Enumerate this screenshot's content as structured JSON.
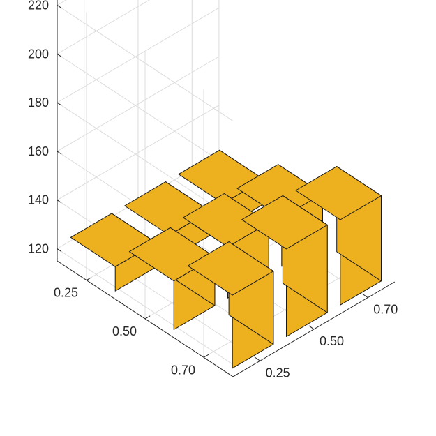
{
  "chart_data": {
    "type": "bar3",
    "title": "",
    "xlabel": "",
    "ylabel": "",
    "zlabel": "",
    "x_categories": [
      "0.25",
      "0.50",
      "0.70"
    ],
    "y_categories": [
      "0.25",
      "0.50",
      "0.70"
    ],
    "zlim": [
      115,
      225
    ],
    "z_ticks": [
      120,
      140,
      160,
      180,
      200,
      220
    ],
    "grid": true,
    "bar_color": "#EDB120",
    "bars": [
      {
        "x": "0.25",
        "y": "0.25",
        "value": 125
      },
      {
        "x": "0.25",
        "y": "0.50",
        "value": 125
      },
      {
        "x": "0.25",
        "y": "0.70",
        "value": 125
      },
      {
        "x": "0.50",
        "y": "0.25",
        "value": 135
      },
      {
        "x": "0.50",
        "y": "0.50",
        "value": 136
      },
      {
        "x": "0.50",
        "y": "0.70",
        "value": 135
      },
      {
        "x": "0.70",
        "y": "0.25",
        "value": 145
      },
      {
        "x": "0.70",
        "y": "0.50",
        "value": 151
      },
      {
        "x": "0.70",
        "y": "0.70",
        "value": 150
      }
    ]
  }
}
